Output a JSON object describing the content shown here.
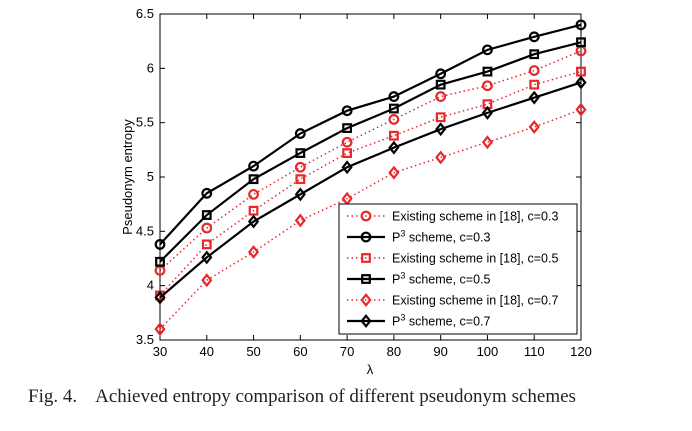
{
  "chart_data": {
    "type": "line",
    "xlabel": "λ",
    "ylabel": "Pseudonym entropy",
    "x": [
      30,
      40,
      50,
      60,
      70,
      80,
      90,
      100,
      110,
      120
    ],
    "xlim": [
      30,
      120
    ],
    "ylim": [
      3.5,
      6.5
    ],
    "xticks": [
      "30",
      "40",
      "50",
      "60",
      "70",
      "80",
      "90",
      "100",
      "110",
      "120"
    ],
    "yticks": [
      "3.5",
      "4",
      "4.5",
      "5",
      "5.5",
      "6",
      "6.5"
    ],
    "legend_position": "bottom-right",
    "series": [
      {
        "name": "Existing scheme in [18], c=0.3",
        "label_pre": "Existing scheme in [18], c=0.3",
        "label_sup": "",
        "label_post": "",
        "color": "#e8282b",
        "style": "dotted",
        "marker": "circle",
        "values": [
          4.14,
          4.53,
          4.84,
          5.09,
          5.32,
          5.53,
          5.74,
          5.84,
          5.98,
          6.16
        ]
      },
      {
        "name": "P3 scheme, c=0.3",
        "label_pre": "P",
        "label_sup": "3",
        "label_post": " scheme, c=0.3",
        "color": "#000000",
        "style": "solid",
        "marker": "circle",
        "values": [
          4.38,
          4.85,
          5.1,
          5.4,
          5.61,
          5.74,
          5.95,
          6.17,
          6.29,
          6.4
        ]
      },
      {
        "name": "Existing scheme in [18], c=0.5",
        "label_pre": "Existing scheme  in [18], c=0.5",
        "label_sup": "",
        "label_post": "",
        "color": "#e8282b",
        "style": "dotted",
        "marker": "square",
        "values": [
          3.91,
          4.38,
          4.69,
          4.98,
          5.22,
          5.38,
          5.55,
          5.67,
          5.85,
          5.97
        ]
      },
      {
        "name": "P3 scheme, c=0.5",
        "label_pre": "P",
        "label_sup": "3",
        "label_post": " scheme, c=0.5",
        "color": "#000000",
        "style": "solid",
        "marker": "square",
        "values": [
          4.22,
          4.65,
          4.98,
          5.22,
          5.45,
          5.63,
          5.85,
          5.97,
          6.13,
          6.24
        ]
      },
      {
        "name": "Existing scheme in [18], c=0.7",
        "label_pre": "Existing scheme  in [18], c=0.7",
        "label_sup": "",
        "label_post": "",
        "color": "#e8282b",
        "style": "dotted",
        "marker": "diamond",
        "values": [
          3.6,
          4.05,
          4.31,
          4.6,
          4.8,
          5.04,
          5.18,
          5.32,
          5.46,
          5.62
        ]
      },
      {
        "name": "P3 scheme, c=0.7",
        "label_pre": "P",
        "label_sup": "3",
        "label_post": " scheme, c=0.7",
        "color": "#000000",
        "style": "solid",
        "marker": "diamond",
        "values": [
          3.89,
          4.26,
          4.59,
          4.84,
          5.09,
          5.27,
          5.44,
          5.59,
          5.73,
          5.87
        ]
      }
    ]
  },
  "caption": {
    "number": "Fig. 4.",
    "text": "Achieved entropy comparison of different pseudonym schemes"
  }
}
